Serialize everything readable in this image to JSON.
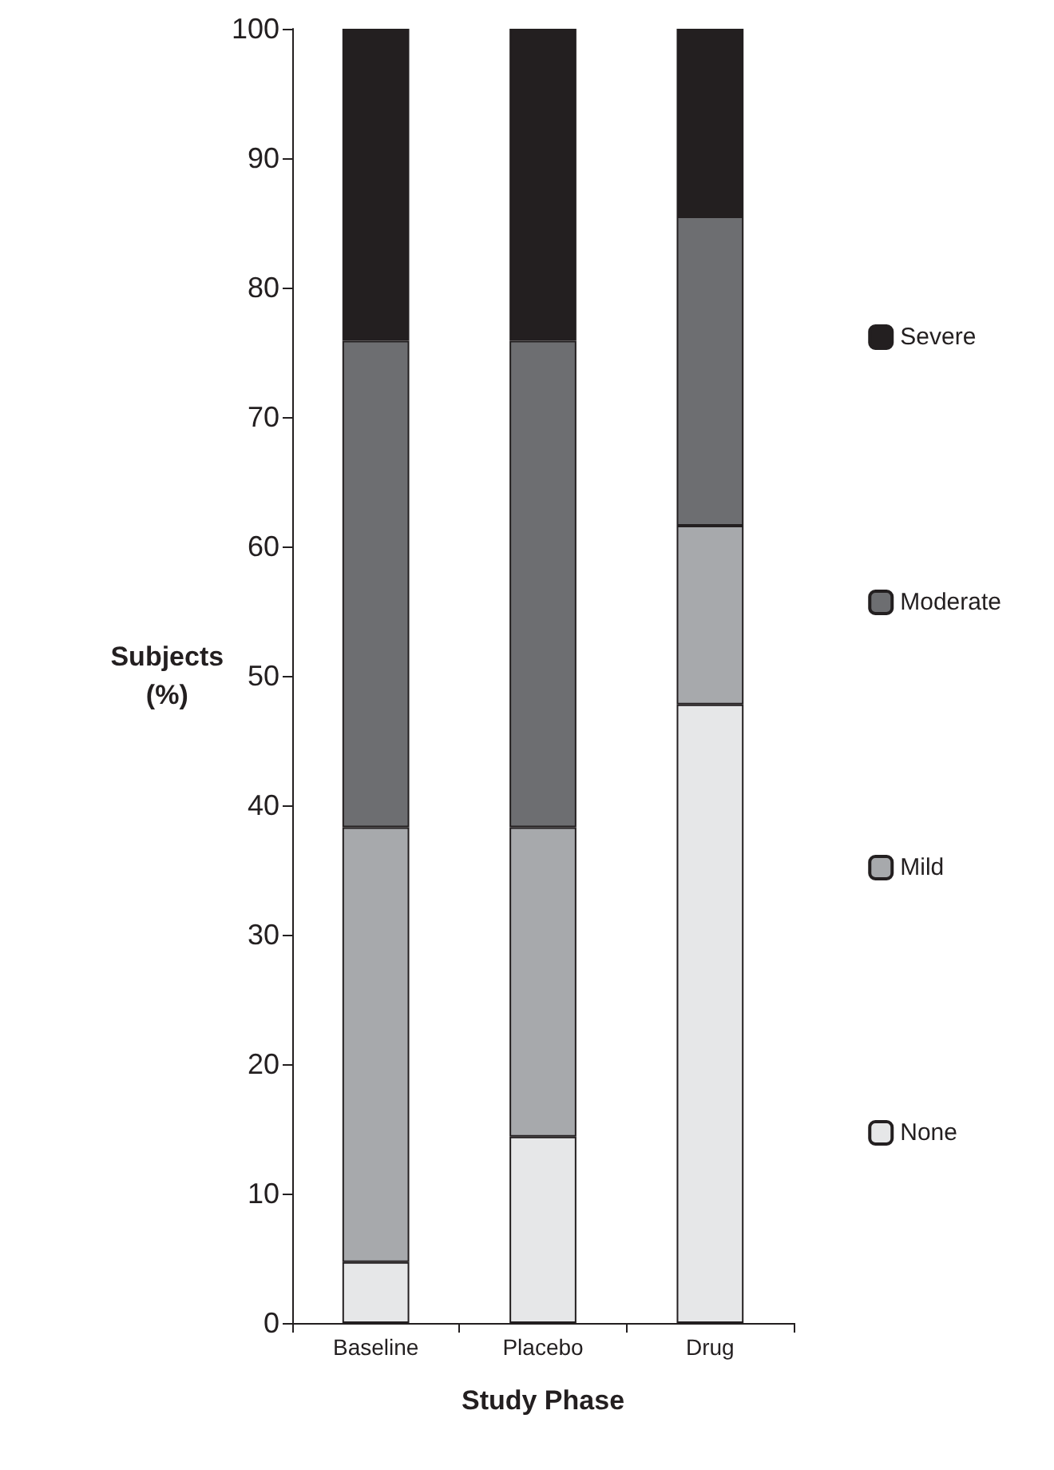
{
  "chart_data": {
    "type": "bar",
    "stacked": true,
    "xlabel": "Study Phase",
    "ylabel": "Subjects\n(%)",
    "categories": [
      "Baseline",
      "Placebo",
      "Drug"
    ],
    "series": [
      {
        "name": "None",
        "color": "#e6e7e8",
        "values": [
          4.7,
          14.4,
          47.8
        ]
      },
      {
        "name": "Mild",
        "color": "#a7a9ac",
        "values": [
          33.6,
          23.9,
          13.8
        ]
      },
      {
        "name": "Moderate",
        "color": "#6d6e71",
        "values": [
          37.6,
          37.6,
          23.9
        ]
      },
      {
        "name": "Severe",
        "color": "#231f20",
        "values": [
          24.1,
          24.1,
          14.5
        ]
      }
    ],
    "ylim": [
      0,
      100
    ],
    "yticks": [
      0,
      10,
      20,
      30,
      40,
      50,
      60,
      70,
      80,
      90,
      100
    ],
    "grid": false,
    "legend": "right"
  }
}
